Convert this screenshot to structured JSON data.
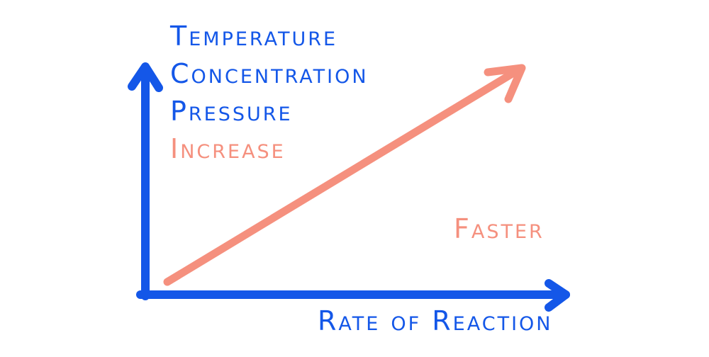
{
  "factors": [
    "Temperature",
    "Concentration",
    "Pressure"
  ],
  "increase_label": "Increase",
  "faster_label": "Faster",
  "x_axis_label": "Rate of Reaction",
  "colors": {
    "axis": "#1457e8",
    "accent": "#f5907e"
  }
}
